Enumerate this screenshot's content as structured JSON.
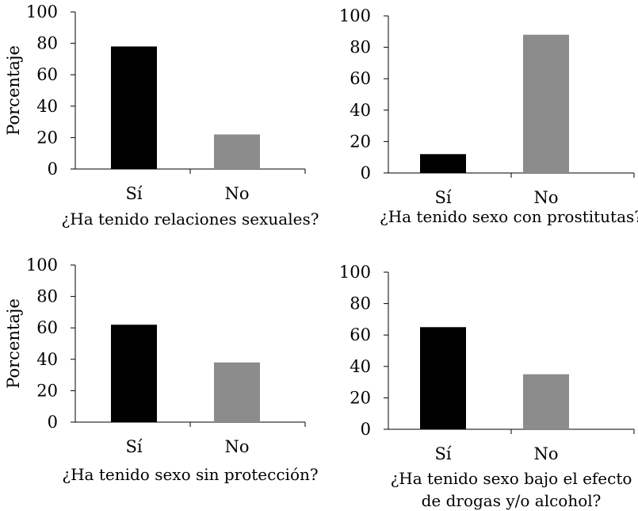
{
  "chart_data": [
    {
      "type": "bar",
      "categories": [
        "Sí",
        "No"
      ],
      "values": [
        78,
        22
      ],
      "colors": [
        "#000000",
        "#8c8c8c"
      ],
      "xlabel": "¿Ha tenido relaciones sexuales?",
      "ylabel": "Porcentaje",
      "ylim": [
        0,
        100
      ],
      "yticks": [
        "0",
        "20",
        "40",
        "60",
        "80",
        "100"
      ],
      "grid": false
    },
    {
      "type": "bar",
      "categories": [
        "Sí",
        "No"
      ],
      "values": [
        12,
        88
      ],
      "colors": [
        "#000000",
        "#8c8c8c"
      ],
      "xlabel": "¿Ha tenido sexo con prostitutas?",
      "ylabel": "",
      "ylim": [
        0,
        100
      ],
      "yticks": [
        "0",
        "20",
        "40",
        "60",
        "80",
        "100"
      ],
      "grid": false
    },
    {
      "type": "bar",
      "categories": [
        "Sí",
        "No"
      ],
      "values": [
        62,
        38
      ],
      "colors": [
        "#000000",
        "#8c8c8c"
      ],
      "xlabel": "¿Ha tenido sexo sin protección?",
      "ylabel": "Porcentaje",
      "ylim": [
        0,
        100
      ],
      "yticks": [
        "0",
        "20",
        "40",
        "60",
        "80",
        "100"
      ],
      "grid": false
    },
    {
      "type": "bar",
      "categories": [
        "Sí",
        "No"
      ],
      "values": [
        65,
        35
      ],
      "colors": [
        "#000000",
        "#8c8c8c"
      ],
      "xlabel": [
        "¿Ha tenido sexo bajo el efecto",
        "de drogas y/o alcohol?"
      ],
      "ylabel": "",
      "ylim": [
        0,
        100
      ],
      "yticks": [
        "0",
        "20",
        "40",
        "60",
        "80",
        "100"
      ],
      "grid": false
    }
  ]
}
